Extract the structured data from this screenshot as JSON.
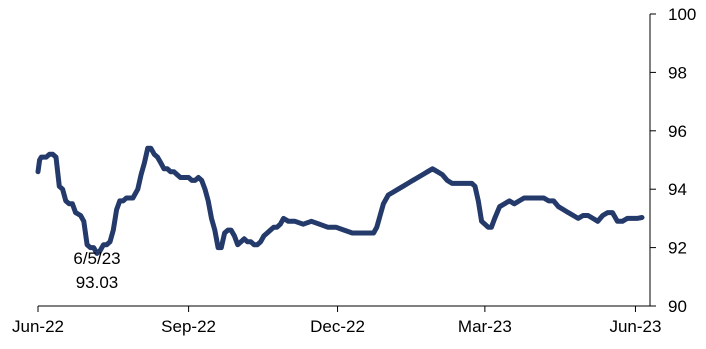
{
  "chart_data": {
    "type": "line",
    "title": "",
    "xlabel": "",
    "ylabel": "",
    "ylim": [
      90,
      100
    ],
    "yticks": [
      90,
      92,
      94,
      96,
      98,
      100
    ],
    "ytick_labels": [
      "90",
      "92",
      "94",
      "96",
      "98",
      "100"
    ],
    "xlim": [
      "2022-06-01",
      "2023-06-05"
    ],
    "xticks": [
      {
        "date": "2022-06-01",
        "label": "Jun-22"
      },
      {
        "date": "2022-09-01",
        "label": "Sep-22"
      },
      {
        "date": "2022-12-01",
        "label": "Dec-22"
      },
      {
        "date": "2023-03-01",
        "label": "Mar-23"
      },
      {
        "date": "2023-06-01",
        "label": "Jun-23"
      }
    ],
    "grid": false,
    "y_axis_side": "right",
    "series": [
      {
        "color": "#243a6b",
        "points": [
          [
            "2022-06-01",
            94.6
          ],
          [
            "2022-06-02",
            95.0
          ],
          [
            "2022-06-03",
            95.1
          ],
          [
            "2022-06-06",
            95.1
          ],
          [
            "2022-06-08",
            95.2
          ],
          [
            "2022-06-10",
            95.2
          ],
          [
            "2022-06-12",
            95.1
          ],
          [
            "2022-06-14",
            94.1
          ],
          [
            "2022-06-16",
            94.0
          ],
          [
            "2022-06-18",
            93.6
          ],
          [
            "2022-06-20",
            93.5
          ],
          [
            "2022-06-22",
            93.5
          ],
          [
            "2022-06-24",
            93.2
          ],
          [
            "2022-06-27",
            93.1
          ],
          [
            "2022-06-29",
            92.9
          ],
          [
            "2022-07-01",
            92.1
          ],
          [
            "2022-07-03",
            92.0
          ],
          [
            "2022-07-05",
            92.0
          ],
          [
            "2022-07-07",
            91.8
          ],
          [
            "2022-07-09",
            91.9
          ],
          [
            "2022-07-11",
            92.1
          ],
          [
            "2022-07-13",
            92.1
          ],
          [
            "2022-07-15",
            92.2
          ],
          [
            "2022-07-17",
            92.6
          ],
          [
            "2022-07-19",
            93.3
          ],
          [
            "2022-07-21",
            93.6
          ],
          [
            "2022-07-23",
            93.6
          ],
          [
            "2022-07-25",
            93.7
          ],
          [
            "2022-07-27",
            93.7
          ],
          [
            "2022-07-29",
            93.7
          ],
          [
            "2022-08-01",
            94.0
          ],
          [
            "2022-08-03",
            94.5
          ],
          [
            "2022-08-05",
            94.9
          ],
          [
            "2022-08-07",
            95.4
          ],
          [
            "2022-08-09",
            95.4
          ],
          [
            "2022-08-11",
            95.2
          ],
          [
            "2022-08-13",
            95.1
          ],
          [
            "2022-08-15",
            94.9
          ],
          [
            "2022-08-17",
            94.7
          ],
          [
            "2022-08-19",
            94.7
          ],
          [
            "2022-08-21",
            94.6
          ],
          [
            "2022-08-23",
            94.6
          ],
          [
            "2022-08-25",
            94.5
          ],
          [
            "2022-08-27",
            94.4
          ],
          [
            "2022-08-29",
            94.4
          ],
          [
            "2022-09-01",
            94.4
          ],
          [
            "2022-09-03",
            94.3
          ],
          [
            "2022-09-05",
            94.3
          ],
          [
            "2022-09-07",
            94.4
          ],
          [
            "2022-09-09",
            94.3
          ],
          [
            "2022-09-11",
            94.0
          ],
          [
            "2022-09-13",
            93.6
          ],
          [
            "2022-09-15",
            93.0
          ],
          [
            "2022-09-17",
            92.6
          ],
          [
            "2022-09-19",
            92.0
          ],
          [
            "2022-09-21",
            92.0
          ],
          [
            "2022-09-23",
            92.5
          ],
          [
            "2022-09-25",
            92.6
          ],
          [
            "2022-09-27",
            92.6
          ],
          [
            "2022-09-29",
            92.4
          ],
          [
            "2022-10-01",
            92.1
          ],
          [
            "2022-10-03",
            92.2
          ],
          [
            "2022-10-05",
            92.3
          ],
          [
            "2022-10-07",
            92.2
          ],
          [
            "2022-10-09",
            92.2
          ],
          [
            "2022-10-11",
            92.1
          ],
          [
            "2022-10-13",
            92.1
          ],
          [
            "2022-10-15",
            92.2
          ],
          [
            "2022-10-17",
            92.4
          ],
          [
            "2022-10-19",
            92.5
          ],
          [
            "2022-10-21",
            92.6
          ],
          [
            "2022-10-23",
            92.7
          ],
          [
            "2022-10-25",
            92.7
          ],
          [
            "2022-10-27",
            92.8
          ],
          [
            "2022-10-29",
            93.0
          ],
          [
            "2022-11-01",
            92.9
          ],
          [
            "2022-11-05",
            92.9
          ],
          [
            "2022-11-10",
            92.8
          ],
          [
            "2022-11-15",
            92.9
          ],
          [
            "2022-11-20",
            92.8
          ],
          [
            "2022-11-25",
            92.7
          ],
          [
            "2022-11-30",
            92.7
          ],
          [
            "2022-12-05",
            92.6
          ],
          [
            "2022-12-10",
            92.5
          ],
          [
            "2022-12-15",
            92.5
          ],
          [
            "2022-12-20",
            92.5
          ],
          [
            "2022-12-23",
            92.5
          ],
          [
            "2022-12-25",
            92.7
          ],
          [
            "2022-12-27",
            93.1
          ],
          [
            "2022-12-29",
            93.5
          ],
          [
            "2023-01-01",
            93.8
          ],
          [
            "2023-01-04",
            93.9
          ],
          [
            "2023-01-07",
            94.0
          ],
          [
            "2023-01-10",
            94.1
          ],
          [
            "2023-01-13",
            94.2
          ],
          [
            "2023-01-16",
            94.3
          ],
          [
            "2023-01-19",
            94.4
          ],
          [
            "2023-01-22",
            94.5
          ],
          [
            "2023-01-25",
            94.6
          ],
          [
            "2023-01-28",
            94.7
          ],
          [
            "2023-01-31",
            94.6
          ],
          [
            "2023-02-03",
            94.5
          ],
          [
            "2023-02-06",
            94.3
          ],
          [
            "2023-02-09",
            94.2
          ],
          [
            "2023-02-12",
            94.2
          ],
          [
            "2023-02-15",
            94.2
          ],
          [
            "2023-02-18",
            94.2
          ],
          [
            "2023-02-21",
            94.2
          ],
          [
            "2023-02-23",
            94.1
          ],
          [
            "2023-02-25",
            93.6
          ],
          [
            "2023-02-27",
            92.9
          ],
          [
            "2023-03-01",
            92.8
          ],
          [
            "2023-03-03",
            92.7
          ],
          [
            "2023-03-05",
            92.7
          ],
          [
            "2023-03-07",
            93.0
          ],
          [
            "2023-03-10",
            93.4
          ],
          [
            "2023-03-13",
            93.5
          ],
          [
            "2023-03-16",
            93.6
          ],
          [
            "2023-03-19",
            93.5
          ],
          [
            "2023-03-22",
            93.6
          ],
          [
            "2023-03-25",
            93.7
          ],
          [
            "2023-03-28",
            93.7
          ],
          [
            "2023-03-31",
            93.7
          ],
          [
            "2023-04-03",
            93.7
          ],
          [
            "2023-04-06",
            93.7
          ],
          [
            "2023-04-09",
            93.6
          ],
          [
            "2023-04-12",
            93.6
          ],
          [
            "2023-04-15",
            93.4
          ],
          [
            "2023-04-18",
            93.3
          ],
          [
            "2023-04-21",
            93.2
          ],
          [
            "2023-04-24",
            93.1
          ],
          [
            "2023-04-27",
            93.0
          ],
          [
            "2023-04-30",
            93.1
          ],
          [
            "2023-05-03",
            93.1
          ],
          [
            "2023-05-06",
            93.0
          ],
          [
            "2023-05-09",
            92.9
          ],
          [
            "2023-05-12",
            93.1
          ],
          [
            "2023-05-15",
            93.2
          ],
          [
            "2023-05-18",
            93.2
          ],
          [
            "2023-05-21",
            92.9
          ],
          [
            "2023-05-24",
            92.9
          ],
          [
            "2023-05-27",
            93.0
          ],
          [
            "2023-05-30",
            93.0
          ],
          [
            "2023-06-02",
            93.0
          ],
          [
            "2023-06-05",
            93.03
          ]
        ]
      }
    ],
    "annotations": [
      {
        "lines": [
          "6/5/23",
          "93.03"
        ]
      }
    ]
  }
}
